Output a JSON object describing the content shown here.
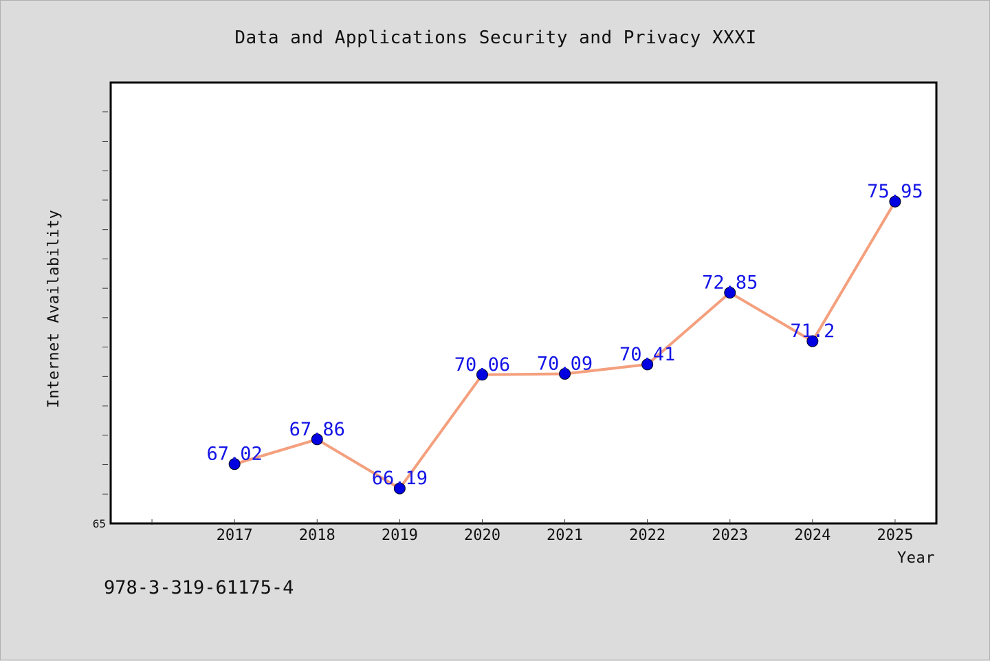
{
  "chart_data": {
    "type": "line",
    "title": "Data and Applications Security and Privacy XXXI",
    "xlabel": "Year",
    "ylabel": "Internet Availability",
    "categories": [
      "2017",
      "2018",
      "2019",
      "2020",
      "2021",
      "2022",
      "2023",
      "2024",
      "2025"
    ],
    "series": [
      {
        "values": [
          67.02,
          67.86,
          66.19,
          70.06,
          70.09,
          70.41,
          72.85,
          71.2,
          75.95
        ],
        "data_labels": [
          "67.02",
          "67.86",
          "66.19",
          "70.06",
          "70.09",
          "70.41",
          "72.85",
          "71.2",
          "75.95"
        ],
        "line_color": "#f4a07e",
        "marker_color": "#0000e0",
        "label_color": "#1414e6"
      }
    ],
    "ylim": [
      65,
      80
    ],
    "y_tick_labels": [
      "65"
    ],
    "grid": false,
    "legend": "none"
  },
  "footer": {
    "isbn": "978-3-319-61175-4"
  }
}
